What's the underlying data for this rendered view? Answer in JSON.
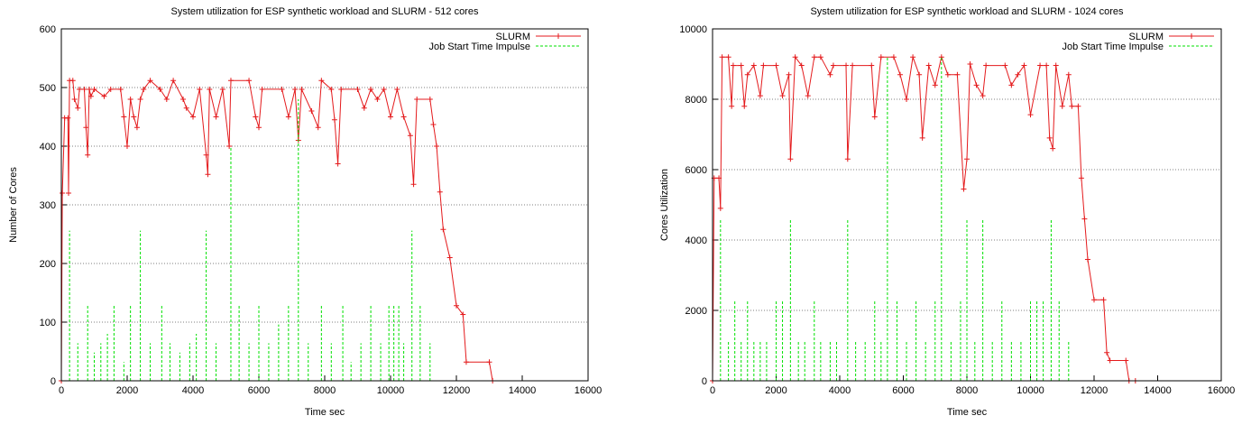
{
  "chart_data": [
    {
      "type": "line",
      "title": "System utilization for ESP synthetic workload and SLURM - 512 cores",
      "xlabel": "Time sec",
      "ylabel": "Number of Cores",
      "xlim": [
        0,
        16000
      ],
      "xticks": [
        0,
        2000,
        4000,
        6000,
        8000,
        10000,
        12000,
        14000,
        16000
      ],
      "ylim": [
        0,
        600
      ],
      "yticks": [
        0,
        100,
        200,
        300,
        400,
        500,
        600
      ],
      "grid": "y",
      "legend": "top-right",
      "series": [
        {
          "name": "SLURM",
          "color": "#e41a1c",
          "style": "linespoints",
          "x": [
            0,
            30,
            100,
            200,
            220,
            250,
            350,
            400,
            500,
            550,
            700,
            750,
            800,
            850,
            900,
            1000,
            1300,
            1500,
            1800,
            1900,
            2000,
            2100,
            2200,
            2300,
            2400,
            2500,
            2700,
            3000,
            3200,
            3400,
            3700,
            3800,
            4000,
            4200,
            4400,
            4450,
            4500,
            4700,
            4900,
            5100,
            5150,
            5700,
            5900,
            6000,
            6100,
            6700,
            6900,
            7100,
            7200,
            7300,
            7600,
            7800,
            7900,
            8200,
            8300,
            8400,
            8500,
            9000,
            9200,
            9400,
            9600,
            9800,
            10000,
            10200,
            10400,
            10600,
            10700,
            10800,
            11200,
            11300,
            11400,
            11500,
            11600,
            11800,
            12000,
            12200,
            12300,
            13000,
            13100
          ],
          "values": [
            0,
            320,
            448,
            448,
            320,
            512,
            512,
            480,
            465,
            497,
            497,
            432,
            385,
            497,
            485,
            497,
            485,
            497,
            497,
            450,
            400,
            480,
            450,
            432,
            480,
            497,
            512,
            497,
            480,
            512,
            480,
            465,
            450,
            497,
            385,
            352,
            497,
            450,
            497,
            400,
            512,
            512,
            450,
            432,
            497,
            497,
            450,
            497,
            410,
            497,
            460,
            432,
            512,
            497,
            445,
            370,
            497,
            497,
            465,
            497,
            480,
            497,
            450,
            497,
            450,
            418,
            335,
            480,
            480,
            437,
            400,
            322,
            258,
            210,
            128,
            113,
            32,
            32,
            0
          ]
        },
        {
          "name": "Job Start Time Impulse",
          "color": "#00e000",
          "style": "impulses",
          "x": [
            0,
            250,
            500,
            800,
            1000,
            1200,
            1400,
            1600,
            1900,
            2100,
            2400,
            2700,
            3050,
            3300,
            3600,
            3900,
            4100,
            4400,
            4700,
            5150,
            5400,
            5700,
            6000,
            6300,
            6600,
            6900,
            7200,
            7500,
            7900,
            8200,
            8550,
            8800,
            9100,
            9400,
            9700,
            9950,
            10100,
            10250,
            10400,
            10650,
            10900,
            11200
          ],
          "values": [
            60,
            256,
            64,
            128,
            48,
            64,
            80,
            128,
            32,
            128,
            256,
            64,
            128,
            64,
            48,
            64,
            80,
            256,
            64,
            400,
            128,
            64,
            128,
            64,
            96,
            128,
            480,
            64,
            128,
            64,
            128,
            32,
            64,
            128,
            64,
            128,
            128,
            128,
            64,
            256,
            128,
            64
          ]
        }
      ]
    },
    {
      "type": "line",
      "title": "System utilization for ESP synthetic workload and SLURM - 1024 cores",
      "xlabel": "Time sec",
      "ylabel": "Cores Utilization",
      "xlim": [
        0,
        16000
      ],
      "xticks": [
        0,
        2000,
        4000,
        6000,
        8000,
        10000,
        12000,
        14000,
        16000
      ],
      "ylim": [
        0,
        10000
      ],
      "yticks": [
        0,
        2000,
        4000,
        6000,
        8000,
        10000
      ],
      "grid": "y",
      "legend": "top-right",
      "series": [
        {
          "name": "SLURM",
          "color": "#e41a1c",
          "style": "linespoints",
          "x": [
            0,
            50,
            200,
            250,
            300,
            500,
            600,
            650,
            900,
            1000,
            1100,
            1300,
            1500,
            1600,
            2000,
            2200,
            2400,
            2450,
            2600,
            2800,
            3000,
            3200,
            3400,
            3700,
            3800,
            4200,
            4250,
            4400,
            5000,
            5100,
            5300,
            5700,
            5900,
            6100,
            6300,
            6500,
            6600,
            6800,
            7000,
            7200,
            7400,
            7700,
            7900,
            8000,
            8100,
            8300,
            8500,
            8600,
            9200,
            9400,
            9600,
            9800,
            10000,
            10300,
            10500,
            10600,
            10700,
            10800,
            11000,
            11200,
            11300,
            11500,
            11600,
            11700,
            11800,
            12000,
            12300,
            12400,
            12500,
            13000,
            13100,
            13300
          ],
          "values": [
            0,
            5760,
            5760,
            4900,
            9200,
            9200,
            7800,
            8960,
            8960,
            7800,
            8700,
            8960,
            8100,
            8960,
            8960,
            8100,
            8700,
            6300,
            9200,
            8960,
            8100,
            9200,
            9200,
            8700,
            8960,
            8960,
            6300,
            8960,
            8960,
            7500,
            9200,
            9200,
            8700,
            8000,
            9200,
            8700,
            6900,
            8960,
            8400,
            9200,
            8700,
            8700,
            5450,
            6300,
            9000,
            8400,
            8100,
            8960,
            8960,
            8400,
            8700,
            8960,
            7560,
            8960,
            8960,
            6900,
            6600,
            8960,
            7800,
            8700,
            7800,
            7800,
            5760,
            4600,
            3450,
            2300,
            2300,
            800,
            576,
            576,
            0,
            0
          ]
        },
        {
          "name": "Job Start Time Impulse",
          "color": "#00e000",
          "style": "impulses",
          "x": [
            0,
            250,
            500,
            700,
            900,
            1100,
            1300,
            1500,
            1700,
            2000,
            2200,
            2450,
            2700,
            2900,
            3200,
            3400,
            3700,
            3900,
            4250,
            4500,
            4800,
            5100,
            5300,
            5500,
            5800,
            6100,
            6400,
            6700,
            7000,
            7200,
            7500,
            7800,
            8000,
            8250,
            8500,
            8800,
            9100,
            9400,
            9700,
            10000,
            10200,
            10400,
            10650,
            10900,
            11200
          ],
          "values": [
            1150,
            4600,
            1150,
            2300,
            1150,
            2300,
            1150,
            1150,
            1150,
            2300,
            2300,
            4600,
            1150,
            1150,
            2300,
            1150,
            1150,
            1150,
            4600,
            1150,
            1150,
            2300,
            1150,
            9200,
            2300,
            1150,
            2300,
            1150,
            2300,
            9200,
            1150,
            2300,
            4600,
            1150,
            4600,
            1150,
            2300,
            1150,
            1150,
            2300,
            2300,
            2300,
            4600,
            2300,
            1150
          ]
        }
      ]
    }
  ]
}
